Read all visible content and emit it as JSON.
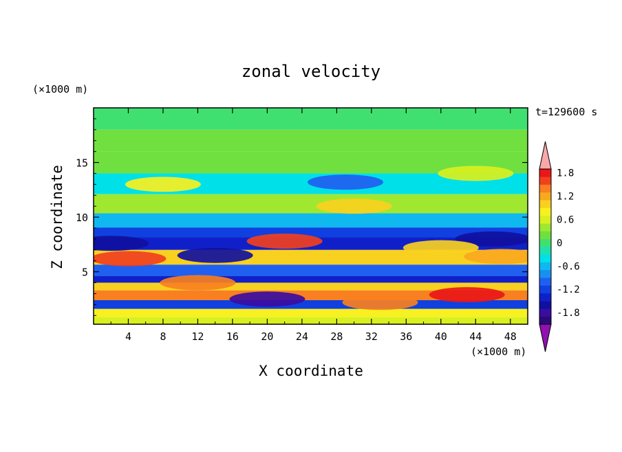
{
  "chart_data": {
    "type": "heatmap",
    "title": "zonal velocity",
    "xlabel": "X coordinate",
    "ylabel": "Z coordinate",
    "x_unit": "(×1000 m)",
    "y_unit": "(×1000 m)",
    "time_label": "t=129600 s",
    "xlim": [
      0,
      50
    ],
    "ylim": [
      0.2,
      20
    ],
    "x_ticks": [
      "4",
      "8",
      "12",
      "16",
      "20",
      "24",
      "28",
      "32",
      "36",
      "40",
      "44",
      "48"
    ],
    "y_ticks": [
      "5",
      "10",
      "15"
    ],
    "colorbar": {
      "levels": [
        -2.0,
        -1.8,
        -1.6,
        -1.4,
        -1.2,
        -1.0,
        -0.8,
        -0.6,
        -0.4,
        -0.2,
        0.0,
        0.2,
        0.4,
        0.6,
        0.8,
        1.0,
        1.2,
        1.4,
        1.6,
        1.8,
        2.0
      ],
      "colors": [
        "#2a0a7a",
        "#3a0da0",
        "#1010a0",
        "#1020c8",
        "#1040e0",
        "#2060f0",
        "#1890f0",
        "#10b8f0",
        "#00e0e8",
        "#20e0b0",
        "#40e070",
        "#70e040",
        "#a0e830",
        "#d8f020",
        "#f8f020",
        "#f8d020",
        "#f8a820",
        "#f88020",
        "#f04020",
        "#e81818"
      ],
      "over_color": "#f8a8a8",
      "under_color": "#9010b0",
      "tick_labels": [
        "1.8",
        "1.2",
        "0.6",
        "0",
        "-0.6",
        "-1.2",
        "-1.8"
      ]
    },
    "bands": [
      {
        "z": 19.0,
        "value": 0.1
      },
      {
        "z": 17.0,
        "value": 0.3
      },
      {
        "z": 15.0,
        "value": 0.2
      },
      {
        "z": 13.0,
        "value": -0.4
      },
      {
        "z": 11.2,
        "value": 0.5
      },
      {
        "z": 9.5,
        "value": -0.5
      },
      {
        "z": 8.6,
        "value": -1.1
      },
      {
        "z": 7.7,
        "value": -1.4
      },
      {
        "z": 6.3,
        "value": 1.0
      },
      {
        "z": 5.0,
        "value": -0.9
      },
      {
        "z": 4.2,
        "value": -1.3
      },
      {
        "z": 3.8,
        "value": 1.1
      },
      {
        "z": 2.8,
        "value": 1.4
      },
      {
        "z": 2.0,
        "value": -1.2
      },
      {
        "z": 1.2,
        "value": 0.9
      },
      {
        "z": 0.5,
        "value": 0.6
      }
    ],
    "features": [
      {
        "x": 29,
        "z": 13.2,
        "value": -0.9
      },
      {
        "x": 22,
        "z": 7.8,
        "value": 1.6
      },
      {
        "x": 14,
        "z": 6.5,
        "value": -1.5
      },
      {
        "x": 4,
        "z": 6.2,
        "value": 1.7
      },
      {
        "x": 46,
        "z": 8.0,
        "value": -1.6
      },
      {
        "x": 47,
        "z": 6.4,
        "value": 1.3
      },
      {
        "x": 40,
        "z": 7.2,
        "value": 1.0
      },
      {
        "x": 12,
        "z": 4.0,
        "value": 1.4
      },
      {
        "x": 33,
        "z": 2.2,
        "value": 1.5
      },
      {
        "x": 20,
        "z": 2.5,
        "value": -1.7
      },
      {
        "x": 44,
        "z": 14.0,
        "value": 0.6
      },
      {
        "x": 8,
        "z": 13.0,
        "value": 0.8
      },
      {
        "x": 30,
        "z": 11.0,
        "value": 1.0
      },
      {
        "x": 43,
        "z": 2.9,
        "value": 1.8
      },
      {
        "x": 2,
        "z": 7.6,
        "value": -1.6
      }
    ]
  }
}
